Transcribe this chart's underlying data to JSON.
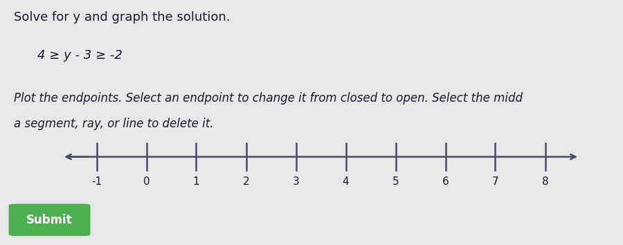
{
  "title_line1": "Solve for y and graph the solution.",
  "equation": "4 ≥ y - 3 ≥ -2",
  "instruction": "Plot the endpoints. Select an endpoint to change it from closed to open. Select the midd",
  "instruction2": "a segment, ray, or line to delete it.",
  "tick_labels": [
    -1,
    0,
    1,
    2,
    3,
    4,
    5,
    6,
    7,
    8
  ],
  "background_color": "#e8e8e8",
  "axis_line_color": "#4a4a6a",
  "text_color": "#1a1a2e",
  "submit_bg": "#4caf50",
  "submit_text": "Submit",
  "submit_text_color": "#ffffff",
  "title_fontsize": 13,
  "equation_fontsize": 13,
  "instruction_fontsize": 12
}
